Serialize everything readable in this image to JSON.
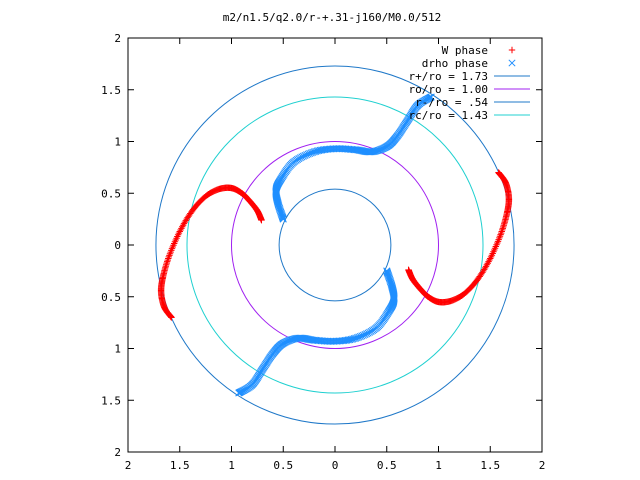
{
  "chart_data": {
    "type": "scatter",
    "title": "m2/n1.5/q2.0/r-+.31-j160/M0.0/512",
    "xlabel": "",
    "ylabel": "",
    "xlim": [
      -2,
      2
    ],
    "ylim": [
      -2,
      2
    ],
    "x_ticks": [
      -2,
      -1.5,
      -1,
      -0.5,
      0,
      0.5,
      1,
      1.5,
      2
    ],
    "x_tick_labels": [
      "2",
      "1.5",
      "1",
      "0.5",
      "0",
      "0.5",
      "1",
      "1.5",
      "2"
    ],
    "y_ticks": [
      2,
      1.5,
      1,
      0.5,
      0,
      -0.5,
      -1,
      -1.5,
      -2
    ],
    "y_tick_labels": [
      "2",
      "1.5",
      "1",
      "0.5",
      "0",
      "0.5",
      "1",
      "1.5",
      "2"
    ],
    "grid": false,
    "legend_position": "top-right",
    "circles": [
      {
        "name": "r+/ro = 1.73",
        "radius": 1.73,
        "color": "#1f78c8"
      },
      {
        "name": "ro/ro = 1.00",
        "radius": 1.0,
        "color": "#a020f0"
      },
      {
        "name": "r-/ro = .54",
        "radius": 0.54,
        "color": "#1f78c8"
      },
      {
        "name": "rc/ro = 1.43",
        "radius": 1.43,
        "color": "#20d0d0"
      }
    ],
    "series": [
      {
        "name": "W phase",
        "marker": "plus",
        "color": "#ff0000",
        "arms": [
          {
            "points": [
              [
                -0.71,
                0.24
              ],
              [
                -0.75,
                0.33
              ],
              [
                -0.82,
                0.42
              ],
              [
                -0.9,
                0.5
              ],
              [
                -1.0,
                0.55
              ],
              [
                -1.12,
                0.54
              ],
              [
                -1.25,
                0.47
              ],
              [
                -1.38,
                0.33
              ],
              [
                -1.5,
                0.13
              ],
              [
                -1.6,
                -0.1
              ],
              [
                -1.66,
                -0.3
              ],
              [
                -1.68,
                -0.45
              ],
              [
                -1.65,
                -0.6
              ],
              [
                -1.58,
                -0.7
              ]
            ]
          },
          {
            "points": [
              [
                0.71,
                -0.24
              ],
              [
                0.75,
                -0.33
              ],
              [
                0.82,
                -0.42
              ],
              [
                0.9,
                -0.5
              ],
              [
                1.0,
                -0.55
              ],
              [
                1.12,
                -0.54
              ],
              [
                1.25,
                -0.47
              ],
              [
                1.38,
                -0.33
              ],
              [
                1.5,
                -0.13
              ],
              [
                1.6,
                0.1
              ],
              [
                1.66,
                0.3
              ],
              [
                1.68,
                0.45
              ],
              [
                1.65,
                0.6
              ],
              [
                1.58,
                0.7
              ]
            ]
          }
        ]
      },
      {
        "name": "drho phase",
        "marker": "cross",
        "color": "#1f8fff",
        "arms": [
          {
            "points": [
              [
                -0.5,
                0.25
              ],
              [
                -0.55,
                0.4
              ],
              [
                -0.57,
                0.53
              ],
              [
                -0.52,
                0.64
              ],
              [
                -0.4,
                0.8
              ],
              [
                -0.2,
                0.9
              ],
              [
                0.0,
                0.93
              ],
              [
                0.2,
                0.92
              ],
              [
                0.35,
                0.9
              ],
              [
                0.5,
                0.95
              ],
              [
                0.6,
                1.05
              ],
              [
                0.7,
                1.2
              ],
              [
                0.8,
                1.35
              ],
              [
                0.93,
                1.43
              ]
            ]
          },
          {
            "points": [
              [
                0.5,
                -0.25
              ],
              [
                0.55,
                -0.4
              ],
              [
                0.57,
                -0.53
              ],
              [
                0.52,
                -0.64
              ],
              [
                0.4,
                -0.8
              ],
              [
                0.2,
                -0.9
              ],
              [
                0.0,
                -0.93
              ],
              [
                -0.2,
                -0.92
              ],
              [
                -0.35,
                -0.9
              ],
              [
                -0.5,
                -0.95
              ],
              [
                -0.6,
                -1.05
              ],
              [
                -0.7,
                -1.2
              ],
              [
                -0.8,
                -1.35
              ],
              [
                -0.93,
                -1.43
              ]
            ]
          }
        ]
      }
    ]
  }
}
